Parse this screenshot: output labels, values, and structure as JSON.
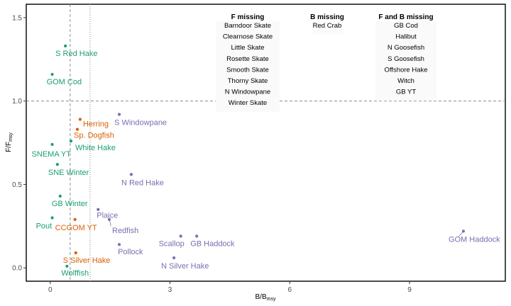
{
  "chart_data": {
    "type": "scatter",
    "xlabel": {
      "main": "B/B",
      "sub": "msy"
    },
    "ylabel": {
      "main": "F/F",
      "sub": "msy"
    },
    "xlim": [
      -0.6,
      11.4
    ],
    "ylim": [
      -0.08,
      1.58
    ],
    "xticks": [
      0,
      3,
      6,
      9
    ],
    "yticks": [
      0.0,
      0.5,
      1.0,
      1.5
    ],
    "xtick_labels": [
      "0",
      "3",
      "6",
      "9"
    ],
    "ytick_labels": [
      "0.0",
      "0.5",
      "1.0",
      "1.5"
    ],
    "reference_lines": {
      "hline_dashed_y": 1.0,
      "vline_dashed_x": 0.5,
      "vline_dotted_x": 1.0
    },
    "colors": {
      "green": "#1b9e77",
      "orange": "#d95f02",
      "purple": "#7570b3"
    },
    "points": [
      {
        "label": "S Red Hake",
        "x": 0.38,
        "y": 1.33,
        "group": "green"
      },
      {
        "label": "GOM Cod",
        "x": 0.05,
        "y": 1.16,
        "group": "green"
      },
      {
        "label": "Herring",
        "x": 0.75,
        "y": 0.89,
        "group": "orange"
      },
      {
        "label": "Sp. Dogfish",
        "x": 0.68,
        "y": 0.83,
        "group": "orange"
      },
      {
        "label": "White Hake",
        "x": 0.52,
        "y": 0.76,
        "group": "green"
      },
      {
        "label": "SNEMA YT",
        "x": 0.05,
        "y": 0.74,
        "group": "green"
      },
      {
        "label": "SNE Winter",
        "x": 0.18,
        "y": 0.62,
        "group": "green"
      },
      {
        "label": "GB Winter",
        "x": 0.25,
        "y": 0.43,
        "group": "green"
      },
      {
        "label": "Pout",
        "x": 0.05,
        "y": 0.3,
        "group": "green"
      },
      {
        "label": "CCGOM YT",
        "x": 0.62,
        "y": 0.29,
        "group": "orange"
      },
      {
        "label": "S Silver Hake",
        "x": 0.64,
        "y": 0.09,
        "group": "orange"
      },
      {
        "label": "Wolffish",
        "x": 0.42,
        "y": 0.01,
        "group": "green"
      },
      {
        "label": "S Windowpane",
        "x": 1.73,
        "y": 0.92,
        "group": "purple"
      },
      {
        "label": "N Red Hake",
        "x": 2.03,
        "y": 0.56,
        "group": "purple"
      },
      {
        "label": "Plaice",
        "x": 1.2,
        "y": 0.35,
        "group": "purple"
      },
      {
        "label": "Redfish",
        "x": 1.48,
        "y": 0.29,
        "group": "purple"
      },
      {
        "label": "Pollock",
        "x": 1.73,
        "y": 0.14,
        "group": "purple"
      },
      {
        "label": "Scallop",
        "x": 3.27,
        "y": 0.19,
        "group": "purple"
      },
      {
        "label": "GB Haddock",
        "x": 3.67,
        "y": 0.19,
        "group": "purple"
      },
      {
        "label": "N Silver Hake",
        "x": 3.1,
        "y": 0.06,
        "group": "purple"
      },
      {
        "label": "GOM Haddock",
        "x": 10.35,
        "y": 0.22,
        "group": "purple"
      }
    ],
    "missing_table": [
      {
        "heading": "F missing",
        "items": [
          "Barndoor Skate",
          "Clearnose Skate",
          "Little Skate",
          "Rosette Skate",
          "Smooth Skate",
          "Thorny Skate",
          "N Windowpane",
          "Winter Skate"
        ]
      },
      {
        "heading": "B missing",
        "items": [
          "Red Crab"
        ]
      },
      {
        "heading": "F and B missing",
        "items": [
          "GB Cod",
          "Halibut",
          "N Goosefish",
          "S Goosefish",
          "Offshore Hake",
          "Witch",
          "GB YT"
        ]
      }
    ]
  }
}
